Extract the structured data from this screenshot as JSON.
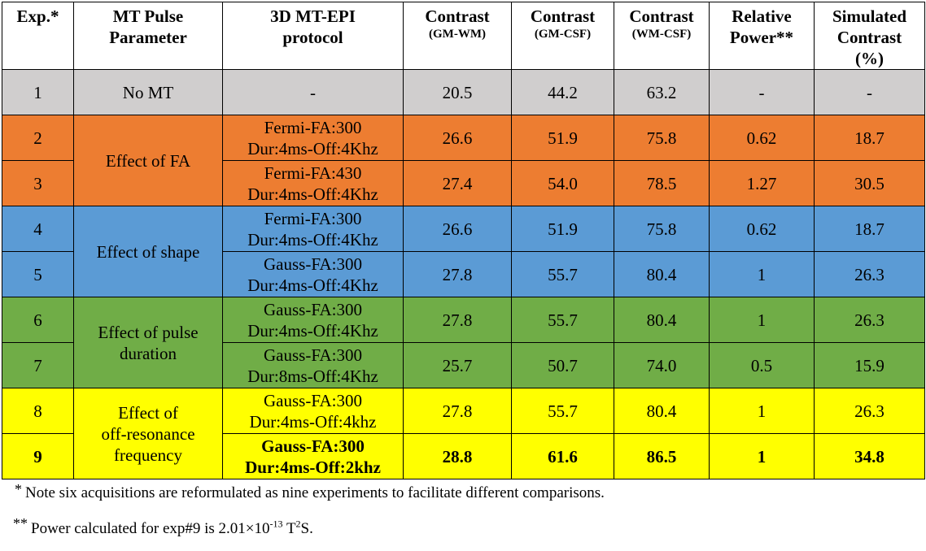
{
  "headers": {
    "exp": "Exp.*",
    "mt_line1": "MT Pulse",
    "mt_line2": "Parameter",
    "proto_line1": "3D MT-EPI",
    "proto_line2": "protocol",
    "c1_line1": "Contrast",
    "c1_line2": "(GM-WM)",
    "c2_line1": "Contrast",
    "c2_line2": "(GM-CSF)",
    "c3_line1": "Contrast",
    "c3_line2": "(WM-CSF)",
    "rp_line1": "Relative",
    "rp_line2": "Power**",
    "sim_line1": "Simulated",
    "sim_line2": "Contrast",
    "sim_line3": "(%)"
  },
  "groups": {
    "g1": "No MT",
    "g2": "Effect of FA",
    "g3": "Effect of shape",
    "g4_line1": "Effect of pulse",
    "g4_line2": "duration",
    "g5_line1": "Effect of",
    "g5_line2": "off-resonance",
    "g5_line3": "frequency"
  },
  "rows": [
    {
      "exp": "1",
      "proto1": "-",
      "proto2": "",
      "gmwm": "20.5",
      "gmcsf": "44.2",
      "wmcsf": "63.2",
      "power": "-",
      "sim": "-"
    },
    {
      "exp": "2",
      "proto1": "Fermi-FA:300",
      "proto2": "Dur:4ms-Off:4Khz",
      "gmwm": "26.6",
      "gmcsf": "51.9",
      "wmcsf": "75.8",
      "power": "0.62",
      "sim": "18.7"
    },
    {
      "exp": "3",
      "proto1": "Fermi-FA:430",
      "proto2": "Dur:4ms-Off:4Khz",
      "gmwm": "27.4",
      "gmcsf": "54.0",
      "wmcsf": "78.5",
      "power": "1.27",
      "sim": "30.5"
    },
    {
      "exp": "4",
      "proto1": "Fermi-FA:300",
      "proto2": "Dur:4ms-Off:4Khz",
      "gmwm": "26.6",
      "gmcsf": "51.9",
      "wmcsf": "75.8",
      "power": "0.62",
      "sim": "18.7"
    },
    {
      "exp": "5",
      "proto1": "Gauss-FA:300",
      "proto2": "Dur:4ms-Off:4Khz",
      "gmwm": "27.8",
      "gmcsf": "55.7",
      "wmcsf": "80.4",
      "power": "1",
      "sim": "26.3"
    },
    {
      "exp": "6",
      "proto1": "Gauss-FA:300",
      "proto2": "Dur:4ms-Off:4Khz",
      "gmwm": "27.8",
      "gmcsf": "55.7",
      "wmcsf": "80.4",
      "power": "1",
      "sim": "26.3"
    },
    {
      "exp": "7",
      "proto1": "Gauss-FA:300",
      "proto2": "Dur:8ms-Off:4Khz",
      "gmwm": "25.7",
      "gmcsf": "50.7",
      "wmcsf": "74.0",
      "power": "0.5",
      "sim": "15.9"
    },
    {
      "exp": "8",
      "proto1": "Gauss-FA:300",
      "proto2": "Dur:4ms-Off:4khz",
      "gmwm": "27.8",
      "gmcsf": "55.7",
      "wmcsf": "80.4",
      "power": "1",
      "sim": "26.3"
    },
    {
      "exp": "9",
      "proto1": "Gauss-FA:300",
      "proto2": "Dur:4ms-Off:2khz",
      "gmwm": "28.8",
      "gmcsf": "61.6",
      "wmcsf": "86.5",
      "power": "1",
      "sim": "34.8"
    }
  ],
  "notes": {
    "n1_mark": "*",
    "n1_text": "Note six acquisitions are reformulated as nine experiments to facilitate different comparisons.",
    "n2_mark": "**",
    "n2_text_a": "Power calculated for exp#9 is 2.01×10",
    "n2_exp": "-13",
    "n2_text_b": " T",
    "n2_exp2": "2",
    "n2_text_c": "S."
  },
  "colors": {
    "no_mt": "#d0cece",
    "fa": "#ed7d31",
    "shape": "#5b9bd5",
    "duration": "#70ad47",
    "offres": "#ffff00"
  }
}
